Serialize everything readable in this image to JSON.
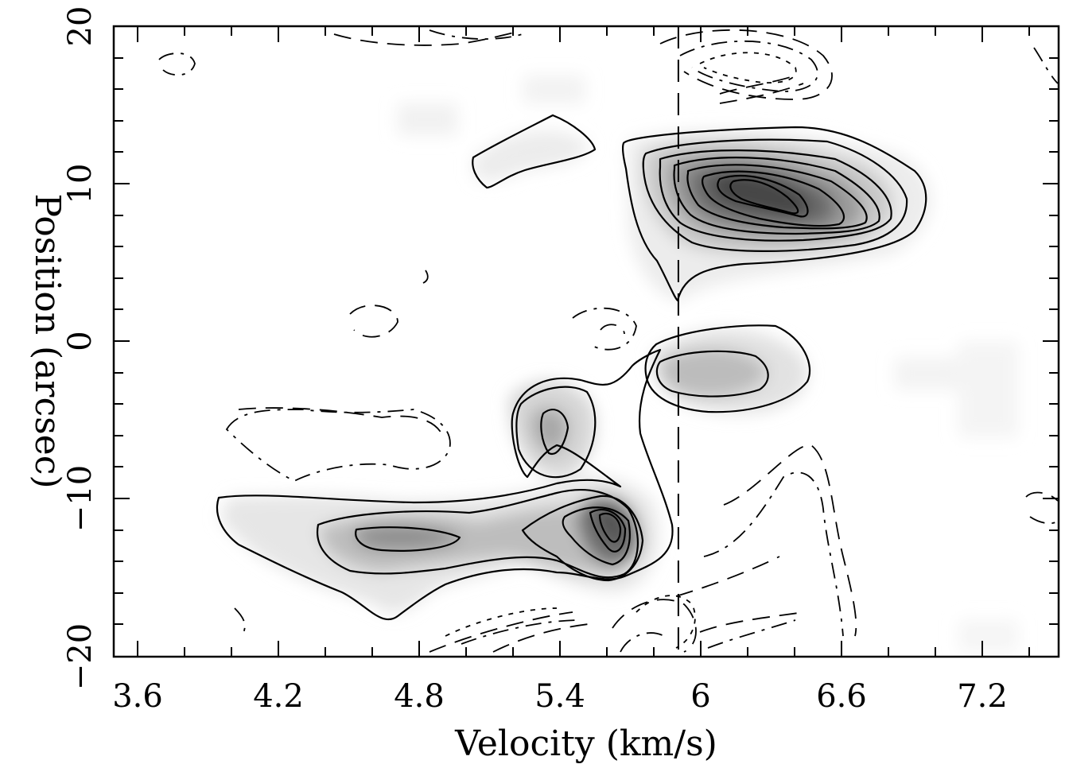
{
  "chart_data": {
    "type": "heatmap",
    "title": "",
    "xlabel": "Velocity (km/s)",
    "ylabel": "Position (arcsec)",
    "xlim": [
      3.5,
      7.55
    ],
    "ylim": [
      -20,
      20
    ],
    "xticks": [
      "3.6",
      "4.2",
      "4.8",
      "5.4",
      "6",
      "6.6",
      "7.2"
    ],
    "yticks": [
      "20",
      "10",
      "0",
      "−10",
      "−20"
    ],
    "xtick_values": [
      3.6,
      4.2,
      4.8,
      5.4,
      6.0,
      6.6,
      7.2
    ],
    "ytick_values": [
      20,
      10,
      0,
      -10,
      -20
    ],
    "reference_line_velocity": 5.92,
    "colormap": "greyscale (white = low, black = high)",
    "emission_peaks": [
      {
        "velocity": 6.15,
        "position": 10.0,
        "relative_intensity": 1.0
      },
      {
        "velocity": 6.45,
        "position": 8.5,
        "relative_intensity": 0.95
      },
      {
        "velocity": 5.62,
        "position": -11.5,
        "relative_intensity": 0.75
      },
      {
        "velocity": 5.38,
        "position": -5.5,
        "relative_intensity": 0.5
      },
      {
        "velocity": 4.7,
        "position": -12.5,
        "relative_intensity": 0.45
      },
      {
        "velocity": 6.2,
        "position": -2.0,
        "relative_intensity": 0.35
      },
      {
        "velocity": 5.2,
        "position": 12.0,
        "relative_intensity": 0.25
      }
    ]
  }
}
